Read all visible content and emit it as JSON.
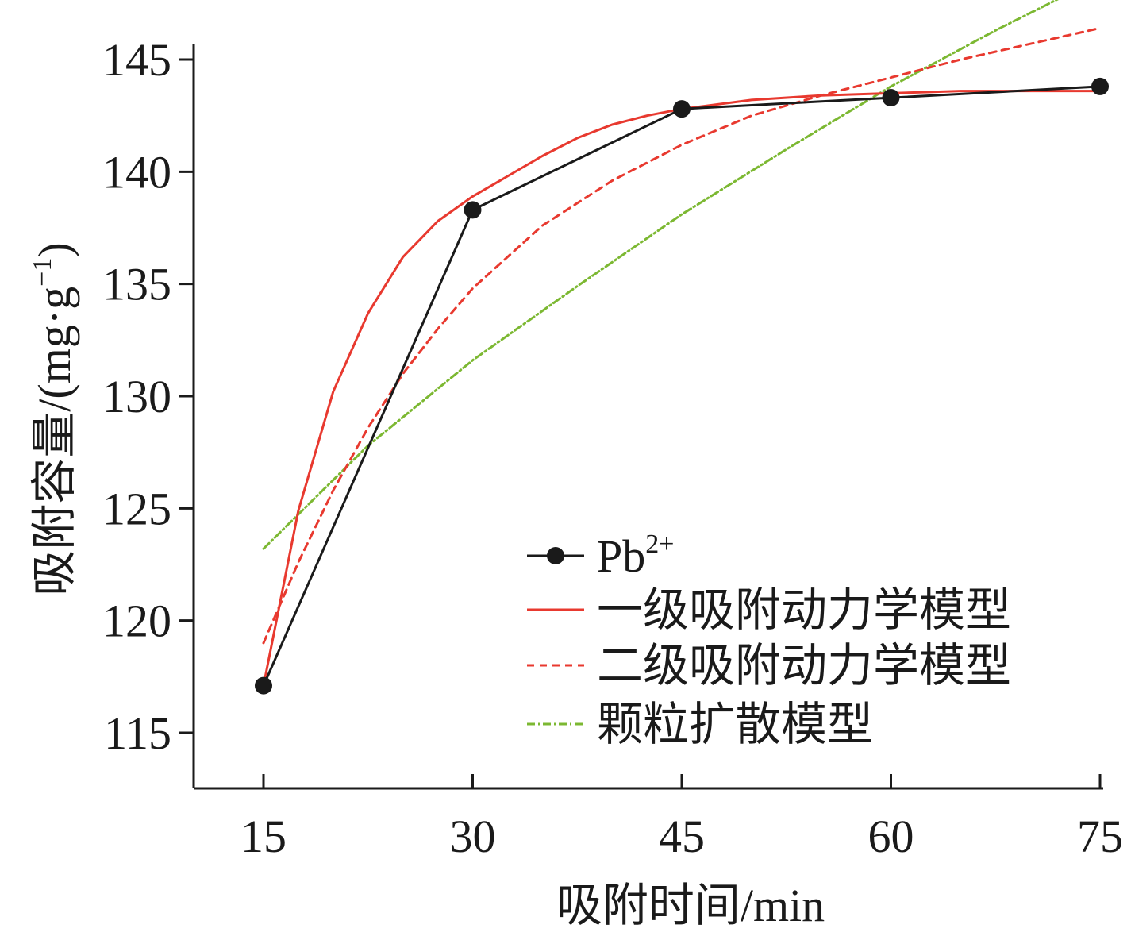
{
  "chart_data": {
    "type": "line",
    "title": "",
    "xlabel": "吸附时间/min",
    "ylabel": "吸附容量/(mg·g",
    "ylabel_sup": "−1",
    "ylabel_close": ")",
    "xlim": [
      15,
      75
    ],
    "ylim": [
      112.5,
      147.5
    ],
    "xticks": [
      15,
      30,
      45,
      60,
      75
    ],
    "yticks": [
      115,
      120,
      125,
      130,
      135,
      140,
      145
    ],
    "grid": false,
    "legend_position": "lower-right",
    "series": [
      {
        "name": "Pb",
        "name_sup": "2+",
        "style": "solid-marker",
        "color": "#1a1a1a",
        "x": [
          15,
          30,
          45,
          60,
          75
        ],
        "y": [
          117.1,
          138.3,
          142.8,
          143.3,
          143.8
        ]
      },
      {
        "name": "一级吸附动力学模型",
        "style": "solid",
        "color": "#e8392f",
        "x": [
          15,
          17.5,
          20,
          22.5,
          25,
          27.5,
          30,
          32.5,
          35,
          37.5,
          40,
          42.5,
          45,
          50,
          55,
          60,
          65,
          70,
          75
        ],
        "y": [
          117.1,
          124.9,
          130.2,
          133.7,
          136.2,
          137.8,
          138.9,
          139.8,
          140.7,
          141.5,
          142.1,
          142.5,
          142.8,
          143.2,
          143.4,
          143.5,
          143.6,
          143.6,
          143.6
        ]
      },
      {
        "name": "二级吸附动力学模型",
        "style": "dashed",
        "color": "#e8392f",
        "x": [
          15,
          17.5,
          20,
          22.5,
          25,
          27.5,
          30,
          35,
          40,
          45,
          50,
          55,
          60,
          65,
          70,
          75
        ],
        "y": [
          119.0,
          122.6,
          125.8,
          128.6,
          131.0,
          133.0,
          134.8,
          137.6,
          139.6,
          141.2,
          142.5,
          143.4,
          144.2,
          145.0,
          145.7,
          146.4
        ]
      },
      {
        "name": "颗粒扩散模型",
        "style": "dash-dot",
        "color": "#7cb832",
        "x": [
          15,
          22.5,
          30,
          37.5,
          45,
          52.5,
          60,
          67.5,
          72
        ],
        "y": [
          123.2,
          127.8,
          131.6,
          134.9,
          138.1,
          141.0,
          143.8,
          146.3,
          147.7
        ]
      }
    ]
  }
}
